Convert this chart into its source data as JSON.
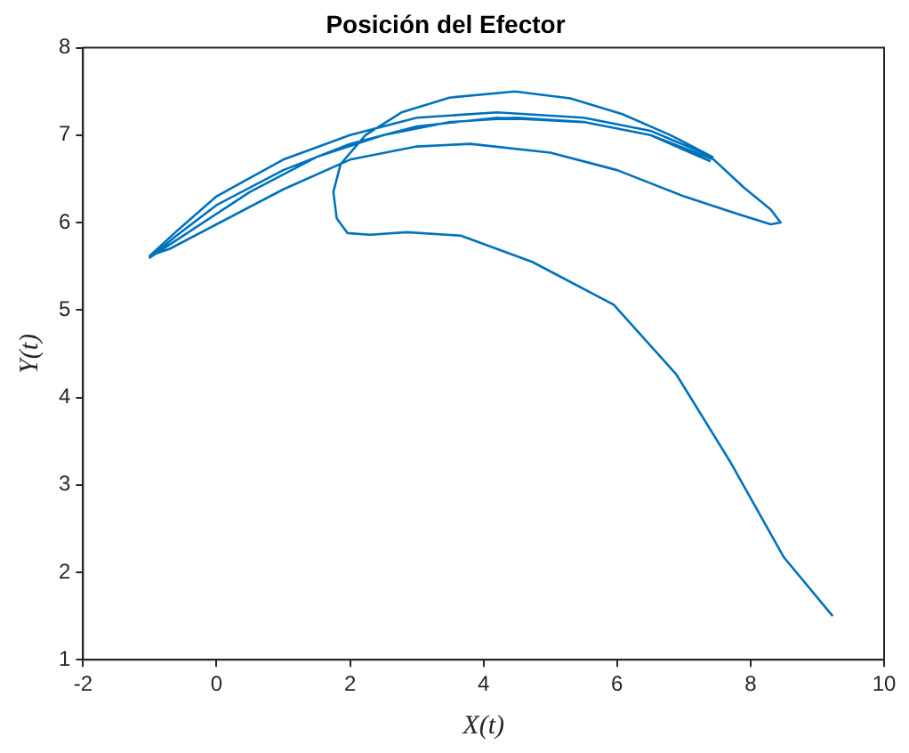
{
  "chart_data": {
    "type": "line",
    "title": "Posición del Efector",
    "xlabel": "X(t)",
    "ylabel": "Y(t)",
    "xlim": [
      -2,
      10
    ],
    "xticks": [
      -2,
      0,
      2,
      4,
      6,
      8,
      10
    ],
    "ylim": [
      1,
      8
    ],
    "yticks": [
      1,
      2,
      3,
      4,
      5,
      6,
      7,
      8
    ],
    "grid": false,
    "legend": false,
    "marker": "none",
    "line_style": "solid",
    "series": [
      {
        "color": "#0072bd",
        "x": [
          9.23,
          8.5,
          7.69,
          6.89,
          5.95,
          4.73,
          3.66,
          2.85,
          2.3,
          1.96,
          1.8,
          1.75,
          1.86,
          2.23,
          2.77,
          3.5,
          4.47,
          5.3,
          6.08,
          6.8,
          7.43,
          6.5,
          5.5,
          4.2,
          3.0,
          2.0,
          1.0,
          0,
          -0.6,
          -1.0,
          -0.7,
          0,
          1.0,
          2.0,
          3.0,
          3.8,
          5.0,
          6.0,
          7.0,
          7.8,
          8.3,
          8.45,
          8.3,
          7.9,
          7.45,
          6.5,
          5.5,
          4.2,
          3.0,
          2.0,
          1.0,
          0,
          -0.6,
          -1.0,
          -0.5,
          0.5,
          1.5,
          2.5,
          3.5,
          4.5,
          5.5,
          6.5,
          7.4
        ],
        "values": [
          1.5,
          2.17,
          3.27,
          4.26,
          5.06,
          5.55,
          5.85,
          5.89,
          5.86,
          5.88,
          6.05,
          6.35,
          6.67,
          7.0,
          7.26,
          7.43,
          7.5,
          7.42,
          7.24,
          7.0,
          6.75,
          7.05,
          7.2,
          7.26,
          7.2,
          7.0,
          6.72,
          6.3,
          5.9,
          5.62,
          5.7,
          5.98,
          6.38,
          6.72,
          6.87,
          6.9,
          6.8,
          6.6,
          6.3,
          6.1,
          5.98,
          6.0,
          6.15,
          6.4,
          6.72,
          7.0,
          7.15,
          7.2,
          7.1,
          6.9,
          6.6,
          6.2,
          5.85,
          5.6,
          5.85,
          6.35,
          6.75,
          7.0,
          7.15,
          7.2,
          7.15,
          7.0,
          6.7
        ]
      }
    ]
  }
}
